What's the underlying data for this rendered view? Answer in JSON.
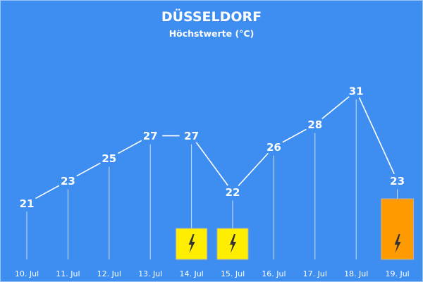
{
  "header": {
    "title": "DÜSSELDORF",
    "subtitle": "Höchstwerte (°C)"
  },
  "chart_data": {
    "type": "line",
    "title": "DÜSSELDORF",
    "subtitle": "Höchstwerte (°C)",
    "xlabel": "",
    "ylabel": "",
    "categories": [
      "10. Jul",
      "11. Jul",
      "12. Jul",
      "13. Jul",
      "14. Jul",
      "15. Jul",
      "16. Jul",
      "17. Jul",
      "18. Jul",
      "19. Jul"
    ],
    "values": [
      21,
      23,
      25,
      27,
      27,
      22,
      26,
      28,
      31,
      23
    ],
    "ylim": [
      16,
      34
    ],
    "grid": false,
    "legend": "none",
    "warnings": [
      {
        "category": "14. Jul",
        "level": "yellow",
        "icon": "lightning-icon",
        "severity": 1
      },
      {
        "category": "15. Jul",
        "level": "yellow",
        "icon": "lightning-icon",
        "severity": 1
      },
      {
        "category": "19. Jul",
        "level": "orange",
        "icon": "lightning-icon",
        "severity": 2
      }
    ]
  },
  "colors": {
    "background": "#3d8ef0",
    "line": "#ffffff",
    "drop_line": "#cfe2fb",
    "warning_yellow": "#ffee00",
    "warning_orange": "#ff9a00",
    "warning_border": "#b0b0b0",
    "bolt": "#333333"
  }
}
